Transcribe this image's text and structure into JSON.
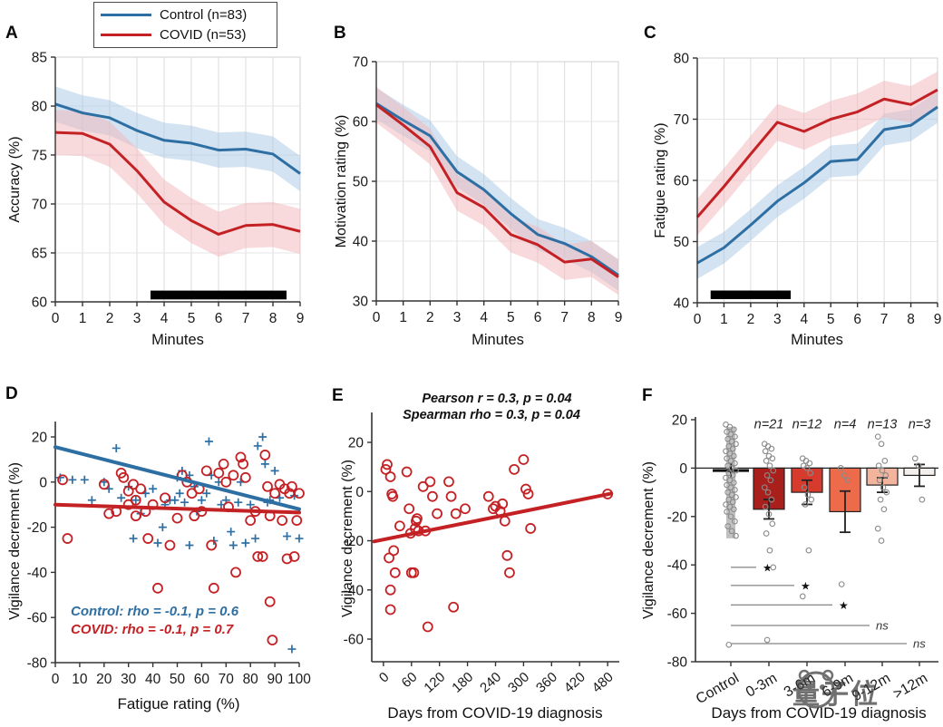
{
  "colors": {
    "control": "#2e6fa3",
    "covid": "#c42125",
    "control_band": "#a8c8e4",
    "covid_band": "#f2b6bb",
    "grid": "#dcdcdc",
    "box": "#d2d2d2",
    "axis": "#333333",
    "scatter_gray": "#8a8a8a",
    "sig_bar": "#000000"
  },
  "legend": {
    "items": [
      {
        "label": "Control (n=83)",
        "key": "control"
      },
      {
        "label": "COVID (n=53)",
        "key": "covid"
      }
    ]
  },
  "watermark": {
    "text": "量子位"
  },
  "chart_data": [
    {
      "panel": "A",
      "type": "line",
      "xlabel": "Minutes",
      "ylabel": "Accuracy (%)",
      "xlim": [
        0,
        9
      ],
      "ylim": [
        60,
        85
      ],
      "xticks": [
        0,
        1,
        2,
        3,
        4,
        5,
        6,
        7,
        8,
        9
      ],
      "yticks": [
        60,
        65,
        70,
        75,
        80,
        85
      ],
      "series": [
        {
          "name": "Control",
          "key": "control",
          "band": 1.8,
          "values": [
            80.2,
            79.3,
            78.8,
            77.5,
            76.5,
            76.2,
            75.5,
            75.6,
            75.1,
            73.1
          ]
        },
        {
          "name": "COVID",
          "key": "covid",
          "band": 2.3,
          "values": [
            77.3,
            77.2,
            76.1,
            73.4,
            70.2,
            68.3,
            66.9,
            67.8,
            67.9,
            67.2
          ]
        }
      ],
      "sig_bar": {
        "from": 3.5,
        "to": 8.5,
        "center": 60.7,
        "half": 0.45
      }
    },
    {
      "panel": "B",
      "type": "line",
      "xlabel": "Minutes",
      "ylabel": "Motivation rating (%)",
      "xlim": [
        0,
        9
      ],
      "ylim": [
        30,
        70
      ],
      "xticks": [
        0,
        1,
        2,
        3,
        4,
        5,
        6,
        7,
        8,
        9
      ],
      "yticks": [
        30,
        40,
        50,
        60,
        70
      ],
      "series": [
        {
          "name": "Control",
          "key": "control",
          "band": 2.6,
          "values": [
            63.0,
            60.2,
            57.6,
            51.6,
            48.6,
            44.6,
            41.1,
            39.6,
            37.4,
            34.3
          ]
        },
        {
          "name": "COVID",
          "key": "covid",
          "band": 3.0,
          "values": [
            62.8,
            59.4,
            55.8,
            48.1,
            45.6,
            41.1,
            39.4,
            36.5,
            37.0,
            34.0
          ]
        }
      ],
      "sig_bar": null
    },
    {
      "panel": "C",
      "type": "line",
      "xlabel": "Minutes",
      "ylabel": "Fatigue rating (%)",
      "xlim": [
        0,
        9
      ],
      "ylim": [
        40,
        80
      ],
      "xticks": [
        0,
        1,
        2,
        3,
        4,
        5,
        6,
        7,
        8,
        9
      ],
      "yticks": [
        40,
        50,
        60,
        70,
        80
      ],
      "series": [
        {
          "name": "Control",
          "key": "control",
          "band": 2.6,
          "values": [
            46.5,
            49.0,
            52.7,
            56.6,
            59.6,
            63.1,
            63.4,
            68.3,
            69.0,
            72.0
          ]
        },
        {
          "name": "COVID",
          "key": "covid",
          "band": 3.0,
          "values": [
            54.0,
            59.0,
            64.3,
            69.5,
            68.0,
            70.0,
            71.2,
            73.3,
            72.4,
            74.8
          ]
        }
      ],
      "sig_bar": {
        "from": 0.5,
        "to": 3.5,
        "center": 41.3,
        "half": 0.7
      }
    },
    {
      "panel": "D",
      "type": "scatter",
      "xlabel": "Fatigue rating (%)",
      "ylabel": "Vigilance decrement (%)",
      "xlim": [
        0,
        100
      ],
      "ylim": [
        -80,
        20
      ],
      "xticks": [
        0,
        10,
        20,
        30,
        40,
        50,
        60,
        70,
        80,
        90,
        100
      ],
      "yticks": [
        -80,
        -60,
        -40,
        -20,
        0,
        20
      ],
      "stats": [
        {
          "text": "Control: rho = -0.1, p = 0.6",
          "key": "control"
        },
        {
          "text": "COVID: rho = -0.1, p = 0.7",
          "key": "covid"
        }
      ],
      "reglines": [
        {
          "key": "control",
          "x1": 0,
          "y1": 15.5,
          "x2": 100,
          "y2": -12.0
        },
        {
          "key": "covid",
          "x1": 0,
          "y1": -10.0,
          "x2": 100,
          "y2": -13.5
        }
      ],
      "series": [
        {
          "name": "Control",
          "key": "control",
          "marker": "plus",
          "points": [
            [
              2,
              2
            ],
            [
              7,
              1
            ],
            [
              12,
              1
            ],
            [
              15,
              -8
            ],
            [
              20,
              0
            ],
            [
              22,
              -3
            ],
            [
              25,
              15
            ],
            [
              27,
              -7
            ],
            [
              30,
              -2
            ],
            [
              32,
              -25
            ],
            [
              33,
              -8
            ],
            [
              35,
              -14
            ],
            [
              37,
              -5
            ],
            [
              40,
              -3
            ],
            [
              42,
              -27
            ],
            [
              44,
              -20
            ],
            [
              45,
              -10
            ],
            [
              47,
              -8
            ],
            [
              49,
              -8
            ],
            [
              50,
              2
            ],
            [
              51,
              -5
            ],
            [
              52,
              5
            ],
            [
              53,
              -9
            ],
            [
              55,
              3
            ],
            [
              55,
              -28
            ],
            [
              57,
              -2
            ],
            [
              58,
              -13
            ],
            [
              60,
              -8
            ],
            [
              62,
              -5
            ],
            [
              63,
              18
            ],
            [
              64,
              3
            ],
            [
              65,
              -26
            ],
            [
              67,
              0
            ],
            [
              68,
              -10
            ],
            [
              70,
              -8
            ],
            [
              72,
              -22
            ],
            [
              73,
              -28
            ],
            [
              75,
              -9
            ],
            [
              76,
              0
            ],
            [
              78,
              -27
            ],
            [
              80,
              -10
            ],
            [
              82,
              -25
            ],
            [
              83,
              16
            ],
            [
              85,
              20
            ],
            [
              86,
              8
            ],
            [
              87,
              -9
            ],
            [
              88,
              -8
            ],
            [
              90,
              5
            ],
            [
              92,
              -7
            ],
            [
              95,
              -24
            ],
            [
              97,
              -74
            ],
            [
              98,
              -6
            ],
            [
              100,
              -25
            ]
          ]
        },
        {
          "name": "COVID",
          "key": "covid",
          "marker": "circle",
          "points": [
            [
              3,
              1
            ],
            [
              5,
              -25
            ],
            [
              20,
              -1
            ],
            [
              22,
              -14
            ],
            [
              25,
              -13
            ],
            [
              27,
              4
            ],
            [
              28,
              2
            ],
            [
              30,
              -4
            ],
            [
              30,
              -10
            ],
            [
              32,
              -1
            ],
            [
              33,
              -8
            ],
            [
              33,
              -15
            ],
            [
              35,
              -3
            ],
            [
              37,
              -13
            ],
            [
              38,
              -25
            ],
            [
              40,
              -10
            ],
            [
              42,
              -47
            ],
            [
              45,
              -7
            ],
            [
              47,
              -28
            ],
            [
              50,
              -16
            ],
            [
              52,
              3
            ],
            [
              54,
              0
            ],
            [
              56,
              -5
            ],
            [
              57,
              -15
            ],
            [
              59,
              -3
            ],
            [
              60,
              -13
            ],
            [
              62,
              5
            ],
            [
              64,
              -28
            ],
            [
              65,
              -47
            ],
            [
              67,
              4
            ],
            [
              69,
              8
            ],
            [
              70,
              0
            ],
            [
              71,
              -11
            ],
            [
              73,
              3
            ],
            [
              74,
              -40
            ],
            [
              76,
              11
            ],
            [
              77,
              8
            ],
            [
              78,
              2
            ],
            [
              80,
              -17
            ],
            [
              82,
              -13
            ],
            [
              83,
              -33
            ],
            [
              85,
              -33
            ],
            [
              86,
              12
            ],
            [
              87,
              -2
            ],
            [
              88,
              -15
            ],
            [
              88,
              -53
            ],
            [
              89,
              -70
            ],
            [
              90,
              -5
            ],
            [
              92,
              -1
            ],
            [
              93,
              -17
            ],
            [
              94,
              -3
            ],
            [
              95,
              -34
            ],
            [
              96,
              -5
            ],
            [
              97,
              -2
            ],
            [
              98,
              -33
            ],
            [
              99,
              -17
            ],
            [
              100,
              -5
            ]
          ]
        }
      ]
    },
    {
      "panel": "E",
      "type": "scatter",
      "xlabel": "Days from COVID-19 diagnosis",
      "ylabel": "Vigilance decrement (%)",
      "titles": [
        "Pearson r = 0.3, p = 0.04",
        "Spearman rho = 0.3, p = 0.04"
      ],
      "xlim": [
        -25,
        505
      ],
      "ylim": [
        -69.2,
        20
      ],
      "xticks": [
        0,
        60,
        120,
        180,
        240,
        300,
        360,
        420,
        480
      ],
      "yticks": [
        -60,
        -40,
        -20,
        0,
        20
      ],
      "rotate_x": true,
      "reglines": [
        {
          "key": "covid",
          "x1": -20,
          "y1": -20.3,
          "x2": 488,
          "y2": -0.8
        }
      ],
      "series": [
        {
          "name": "COVID",
          "key": "covid",
          "marker": "circle",
          "points": [
            [
              5,
              9
            ],
            [
              8,
              11
            ],
            [
              12,
              -27
            ],
            [
              15,
              6
            ],
            [
              15,
              -40
            ],
            [
              15,
              -48
            ],
            [
              18,
              -1
            ],
            [
              20,
              -2
            ],
            [
              22,
              -24
            ],
            [
              25,
              -33
            ],
            [
              35,
              -14
            ],
            [
              50,
              8
            ],
            [
              55,
              -7
            ],
            [
              58,
              -17
            ],
            [
              60,
              -33
            ],
            [
              65,
              -33
            ],
            [
              68,
              -15
            ],
            [
              70,
              -12
            ],
            [
              72,
              -11
            ],
            [
              75,
              -16
            ],
            [
              85,
              2
            ],
            [
              90,
              -16
            ],
            [
              95,
              -55
            ],
            [
              100,
              4
            ],
            [
              105,
              -2
            ],
            [
              115,
              -9
            ],
            [
              140,
              4
            ],
            [
              145,
              -2
            ],
            [
              150,
              -47
            ],
            [
              155,
              -9
            ],
            [
              175,
              -7
            ],
            [
              225,
              -2
            ],
            [
              235,
              -7
            ],
            [
              240,
              -6
            ],
            [
              250,
              -8
            ],
            [
              255,
              -5
            ],
            [
              260,
              -12
            ],
            [
              265,
              -26
            ],
            [
              270,
              -33
            ],
            [
              280,
              9
            ],
            [
              300,
              13
            ],
            [
              305,
              1
            ],
            [
              310,
              -1
            ],
            [
              315,
              -15
            ],
            [
              480,
              -1
            ]
          ]
        }
      ]
    },
    {
      "panel": "F",
      "type": "bar",
      "xlabel": "Days from COVID-19 diagnosis",
      "ylabel": "Vigilance decrement (%)",
      "ylim": [
        -80,
        20
      ],
      "yticks": [
        -80,
        -60,
        -40,
        -20,
        0,
        20
      ],
      "categories": [
        "Control",
        "0-3m",
        "3-6m",
        "6-9m",
        "9-12m",
        ">12m"
      ],
      "values": [
        -1,
        -17,
        -10,
        -18,
        -7,
        -3
      ],
      "errors": [
        3,
        4,
        5,
        8.5,
        3,
        4.5
      ],
      "bar_colors": [
        "#9a9a9a",
        "#a81f1c",
        "#d73b2d",
        "#ed6a4b",
        "#f3b49d",
        "#f3efec"
      ],
      "n_labels": [
        "n=21",
        "n=12",
        "n=4",
        "n=13",
        "n=3"
      ],
      "control_strip": {
        "top": 17,
        "bottom": -29
      },
      "control_mean": {
        "value": -1,
        "err": 3,
        "half_width": 20
      },
      "sig": [
        {
          "to": 1,
          "y": -41,
          "label": "★"
        },
        {
          "to": 2,
          "y": -48.5,
          "label": "★"
        },
        {
          "to": 3,
          "y": -56.5,
          "label": "★"
        },
        {
          "to": 4,
          "y": -65,
          "label": "ns"
        },
        {
          "to": 5,
          "y": -72.5,
          "label": "ns"
        }
      ],
      "points": [
        [
          18,
          17,
          16,
          15,
          14,
          13,
          12,
          11,
          10,
          9,
          8,
          7,
          6,
          5,
          4,
          3,
          2,
          1,
          0,
          -1,
          -2,
          -3,
          -4,
          -5,
          -6,
          -7,
          -8,
          -9,
          -10,
          -11,
          -12,
          -13,
          -14,
          -15,
          -16,
          -17,
          -18,
          -20,
          -22,
          -24,
          -26,
          -28,
          -73
        ],
        [
          10,
          9,
          8,
          7,
          5,
          4,
          3,
          1,
          -1,
          -3,
          -5,
          -8,
          -10,
          -13,
          -16,
          -19,
          -23,
          -27,
          -34,
          -41,
          -71
        ],
        [
          4,
          3,
          2,
          1,
          0,
          -2,
          -8,
          -11,
          -13,
          -15,
          -34,
          -53
        ],
        [
          0,
          -3,
          -5,
          -48
        ],
        [
          13,
          10,
          3,
          1,
          -1,
          -3,
          -5,
          -8,
          -10,
          -13,
          -17,
          -25,
          -30
        ],
        [
          4,
          1,
          -13
        ]
      ]
    }
  ]
}
